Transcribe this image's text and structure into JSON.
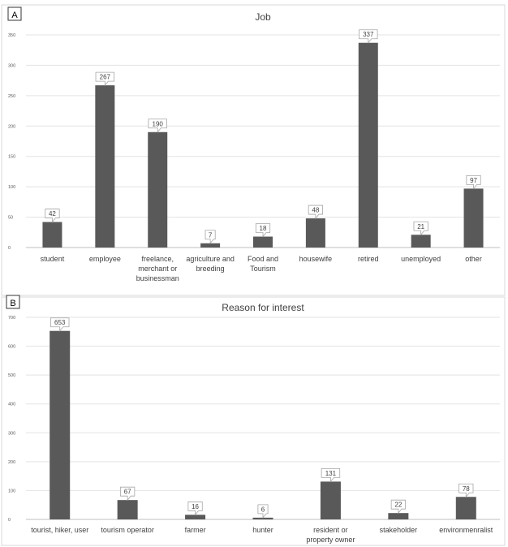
{
  "chart_data": [
    {
      "panel_label": "A",
      "type": "bar",
      "title": "Job",
      "xlabel": "",
      "ylabel": "",
      "ylim": [
        0,
        350
      ],
      "yticks": [
        0,
        50,
        100,
        150,
        200,
        250,
        300,
        350
      ],
      "grid": true,
      "categories": [
        "student",
        "employee",
        "freelance, merchant or businessman",
        "agriculture and breeding",
        "Food and Tourism",
        "housewife",
        "retired",
        "unemployed",
        "other"
      ],
      "category_lines": [
        [
          "student"
        ],
        [
          "employee"
        ],
        [
          "freelance,",
          "merchant or",
          "businessman"
        ],
        [
          "agriculture and",
          "breeding"
        ],
        [
          "Food and",
          "Tourism"
        ],
        [
          "housewife"
        ],
        [
          "retired"
        ],
        [
          "unemployed"
        ],
        [
          "other"
        ]
      ],
      "values": [
        42,
        267,
        190,
        7,
        18,
        48,
        337,
        21,
        97
      ],
      "bar_color": "#595959"
    },
    {
      "panel_label": "B",
      "type": "bar",
      "title": "Reason for interest",
      "xlabel": "",
      "ylabel": "",
      "ylim": [
        0,
        700
      ],
      "yticks": [
        0,
        100,
        200,
        300,
        400,
        500,
        600,
        700
      ],
      "grid": true,
      "categories": [
        "tourist, hiker, user",
        "tourism operator",
        "farmer",
        "hunter",
        "resident or property owner",
        "stakeholder",
        "environmenralist"
      ],
      "category_lines": [
        [
          "tourist, hiker, user"
        ],
        [
          "tourism operator"
        ],
        [
          "farmer"
        ],
        [
          "hunter"
        ],
        [
          "resident or",
          "property owner"
        ],
        [
          "stakeholder"
        ],
        [
          "environmenralist"
        ]
      ],
      "values": [
        653,
        67,
        16,
        6,
        131,
        22,
        78
      ],
      "bar_color": "#595959"
    }
  ]
}
